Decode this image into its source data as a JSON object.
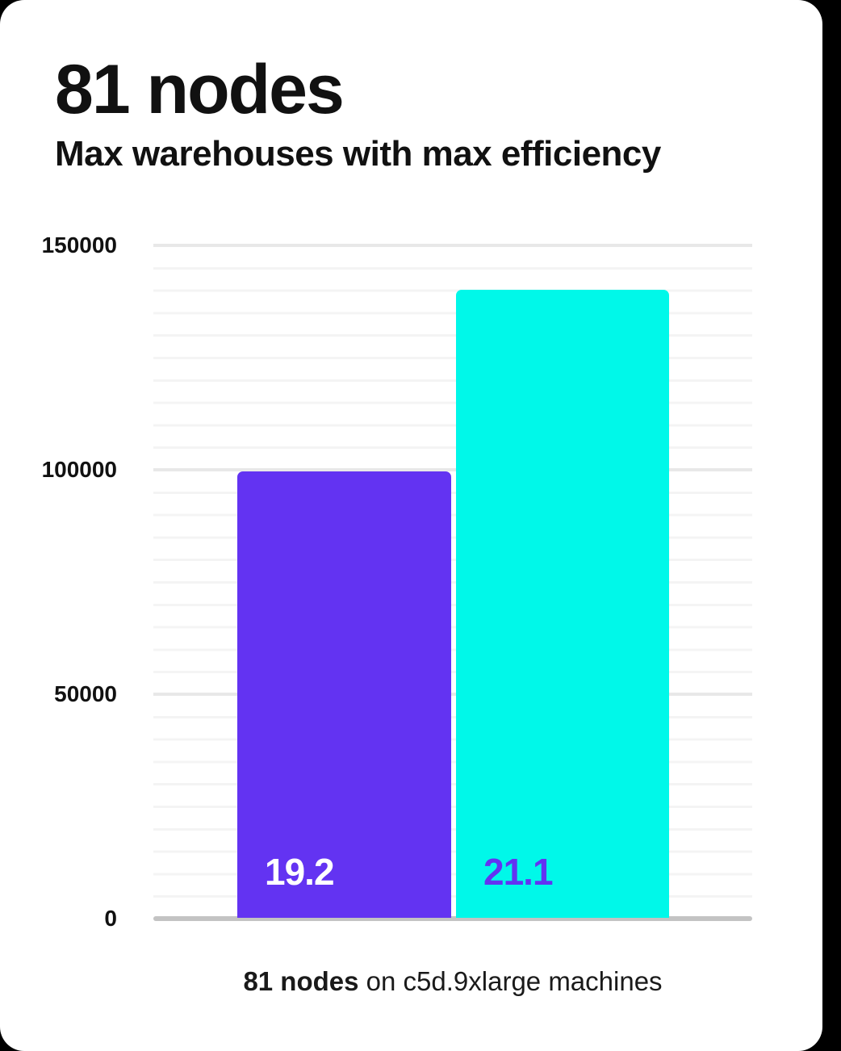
{
  "header": {
    "title": "81 nodes",
    "subtitle": "Max warehouses with max efficiency"
  },
  "caption": {
    "bold": "81 nodes",
    "rest": " on c5d.9xlarge machines"
  },
  "colors": {
    "background": "#000000",
    "card": "#ffffff",
    "text": "#111111",
    "minor_grid": "#f4f4f4",
    "major_grid": "#e8e8e8",
    "axis_line": "#c3c3c3",
    "bar_purple": "#6333f2",
    "bar_cyan": "#00f8e9"
  },
  "chart_data": {
    "type": "bar",
    "title": "81 nodes",
    "subtitle": "Max warehouses with max efficiency",
    "bar_labels": [
      "19.2",
      "21.1"
    ],
    "values": [
      99500,
      140000
    ],
    "bar_colors": [
      "#6333f2",
      "#00f8e9"
    ],
    "bar_label_colors": [
      "#ffffff",
      "#6333f2"
    ],
    "ylim": [
      0,
      150000
    ],
    "yticks": [
      150000,
      100000,
      50000,
      0
    ],
    "ytick_labels": [
      "150000",
      "100000",
      "50000",
      "0"
    ],
    "minor_grid_step": 5000,
    "grid": "horizontal",
    "legend": "none",
    "caption": "81 nodes on c5d.9xlarge machines"
  }
}
